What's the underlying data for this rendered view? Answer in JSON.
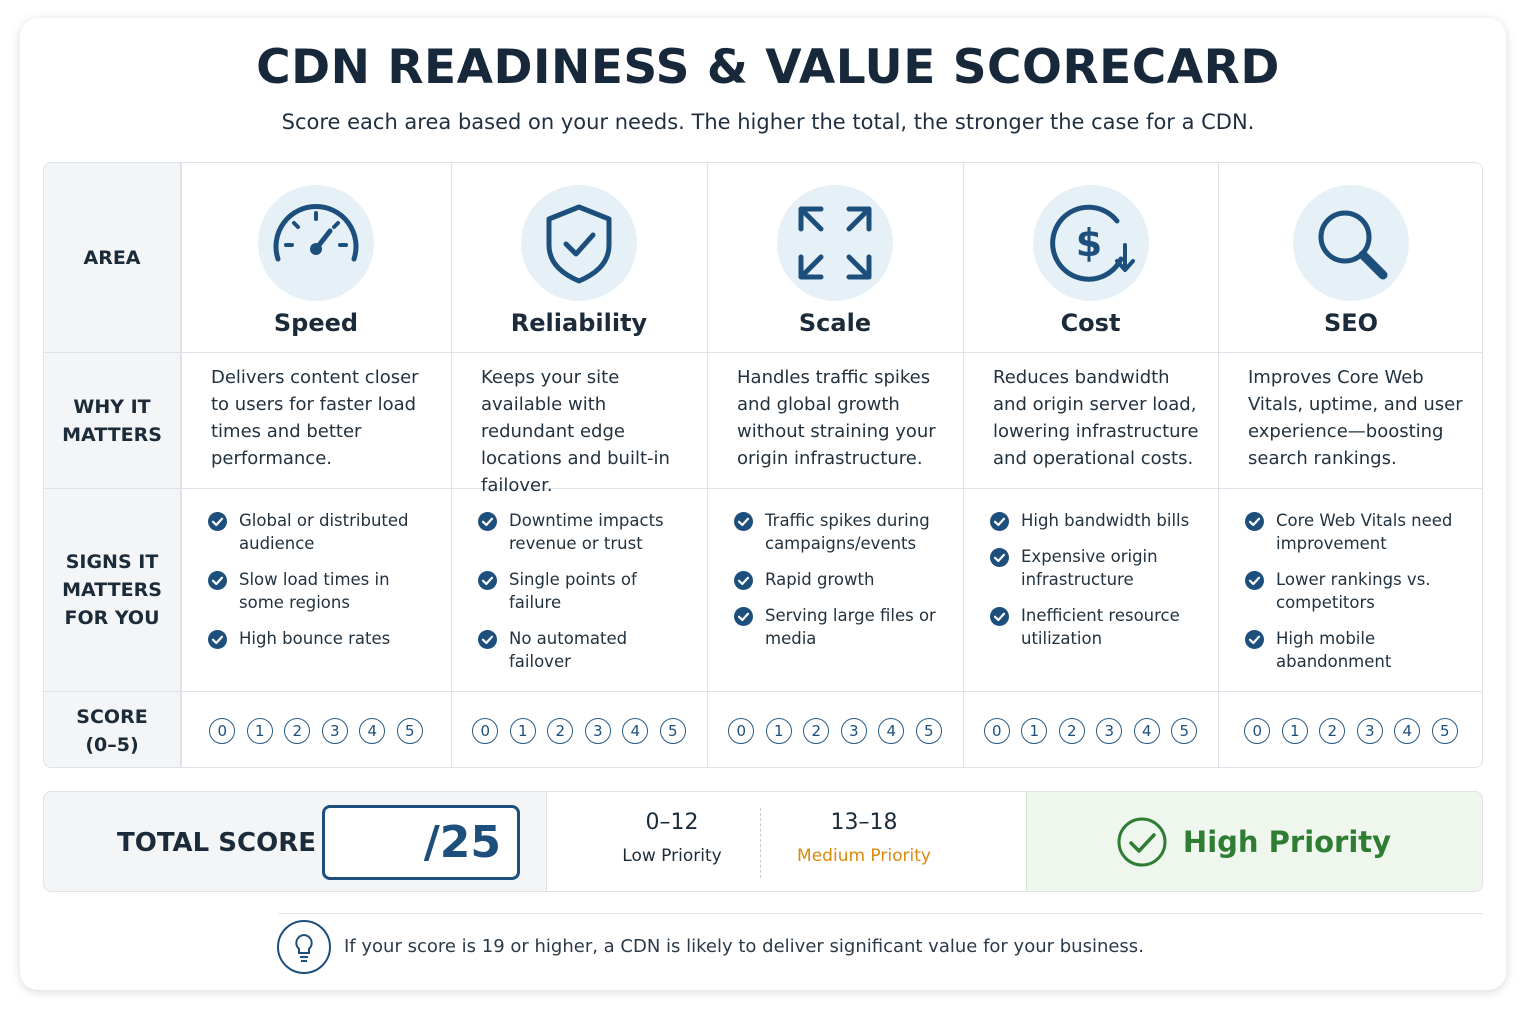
{
  "header": {
    "title": "CDN READINESS & VALUE SCORECARD",
    "subtitle": "Score each area based on your needs. The higher the total, the stronger the case for a CDN."
  },
  "table": {
    "row_labels": [
      "AREA",
      "WHY IT MATTERS",
      "SIGNS IT MATTERS FOR YOU",
      "SCORE (0–5)"
    ],
    "score_options": [
      0,
      1,
      2,
      3,
      4,
      5
    ],
    "columns": [
      {
        "name": "Speed",
        "why": "Delivers content closer to users for faster load times and better performance.",
        "signs": [
          "Global or distributed audience",
          "Slow load times in some regions",
          "High bounce rates"
        ]
      },
      {
        "name": "Reliability",
        "why": "Keeps your site available with redundant edge locations and built-in failover.",
        "signs": [
          "Downtime impacts revenue or trust",
          "Single points of failure",
          "No automated failover"
        ]
      },
      {
        "name": "Scale",
        "why": "Handles traffic spikes and global growth without straining your origin infrastructure.",
        "signs": [
          "Traffic spikes during campaigns/events",
          "Rapid growth",
          "Serving large files or media"
        ]
      },
      {
        "name": "Cost",
        "why": "Reduces bandwidth and origin server load, lowering infrastructure and operational costs.",
        "signs": [
          "High bandwidth bills",
          "Expensive origin infrastructure",
          "Inefficient resource utilization"
        ]
      },
      {
        "name": "SEO",
        "why": "Improves Core Web Vitals, uptime, and user experience—boosting search rankings.",
        "signs": [
          "Core Web Vitals need improvement",
          "Lower rankings vs. competitors",
          "High mobile abandonment"
        ]
      }
    ]
  },
  "total": {
    "label": "TOTAL SCORE",
    "max": "/25",
    "ranges": [
      {
        "range": "0–12",
        "label": "Low Priority"
      },
      {
        "range": "13–18",
        "label": "Medium Priority"
      }
    ],
    "high": "High Priority"
  },
  "footer": "If your score is 19 or higher, a CDN is likely to deliver significant value for your business."
}
